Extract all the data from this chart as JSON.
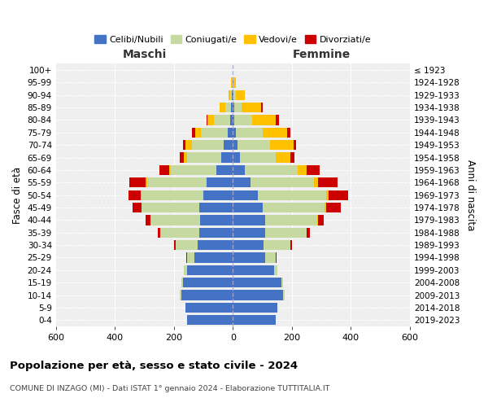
{
  "age_groups": [
    "0-4",
    "5-9",
    "10-14",
    "15-19",
    "20-24",
    "25-29",
    "30-34",
    "35-39",
    "40-44",
    "45-49",
    "50-54",
    "55-59",
    "60-64",
    "65-69",
    "70-74",
    "75-79",
    "80-84",
    "85-89",
    "90-94",
    "95-99",
    "100+"
  ],
  "birth_years": [
    "2019-2023",
    "2014-2018",
    "2009-2013",
    "2004-2008",
    "1999-2003",
    "1994-1998",
    "1989-1993",
    "1984-1988",
    "1979-1983",
    "1974-1978",
    "1969-1973",
    "1964-1968",
    "1959-1963",
    "1954-1958",
    "1949-1953",
    "1944-1948",
    "1939-1943",
    "1934-1938",
    "1929-1933",
    "1924-1928",
    "≤ 1923"
  ],
  "maschi": {
    "celibi": [
      155,
      160,
      175,
      170,
      155,
      130,
      120,
      115,
      110,
      115,
      100,
      90,
      55,
      40,
      30,
      18,
      10,
      5,
      3,
      2,
      0
    ],
    "coniugati": [
      0,
      0,
      5,
      5,
      10,
      25,
      75,
      130,
      170,
      195,
      210,
      200,
      155,
      115,
      110,
      90,
      55,
      20,
      5,
      2,
      0
    ],
    "vedovi": [
      0,
      0,
      0,
      0,
      0,
      0,
      0,
      0,
      0,
      0,
      3,
      5,
      5,
      10,
      20,
      20,
      20,
      20,
      8,
      2,
      0
    ],
    "divorziati": [
      0,
      0,
      0,
      0,
      2,
      3,
      5,
      10,
      15,
      30,
      40,
      55,
      35,
      15,
      10,
      10,
      5,
      0,
      0,
      0,
      0
    ]
  },
  "femmine": {
    "nubili": [
      145,
      150,
      170,
      165,
      140,
      110,
      105,
      110,
      110,
      100,
      85,
      60,
      40,
      25,
      15,
      10,
      5,
      5,
      3,
      2,
      0
    ],
    "coniugate": [
      0,
      0,
      5,
      5,
      10,
      35,
      90,
      140,
      175,
      210,
      230,
      215,
      180,
      120,
      110,
      90,
      60,
      25,
      8,
      2,
      0
    ],
    "vedove": [
      0,
      0,
      0,
      0,
      0,
      0,
      0,
      0,
      3,
      5,
      10,
      15,
      30,
      50,
      80,
      85,
      80,
      65,
      30,
      5,
      0
    ],
    "divorziate": [
      0,
      0,
      0,
      0,
      2,
      3,
      5,
      10,
      20,
      50,
      65,
      65,
      45,
      15,
      10,
      10,
      10,
      5,
      0,
      0,
      0
    ]
  },
  "colors": {
    "celibi": "#4472c4",
    "coniugati": "#c5d9a0",
    "vedovi": "#ffc000",
    "divorziati": "#cc0000"
  },
  "xlim": 600,
  "title": "Popolazione per età, sesso e stato civile - 2024",
  "subtitle": "COMUNE DI INZAGO (MI) - Dati ISTAT 1° gennaio 2024 - Elaborazione TUTTITALIA.IT",
  "ylabel_left": "Fasce di età",
  "ylabel_right": "Anni di nascita",
  "xlabel_left": "Maschi",
  "xlabel_right": "Femmine",
  "legend_labels": [
    "Celibi/Nubili",
    "Coniugati/e",
    "Vedovi/e",
    "Divorziati/e"
  ],
  "bg_color": "#efefef",
  "grid_color": "#ffffff",
  "center_line_color": "#aaaacc"
}
